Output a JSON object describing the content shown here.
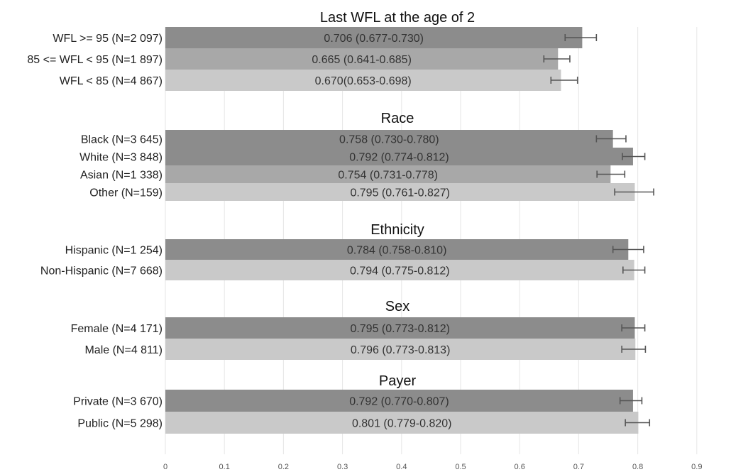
{
  "chart_data": {
    "type": "bar",
    "orientation": "horizontal",
    "xlim": [
      0,
      1.0
    ],
    "xticks": [
      "0",
      "0.1",
      "0.2",
      "0.3",
      "0.4",
      "0.5",
      "0.6",
      "0.7",
      "0.8",
      "0.9"
    ],
    "grid": true,
    "legend": "none",
    "colors": {
      "dark": "#8c8c8c",
      "medium": "#a8a8a8",
      "light": "#c9c9c9"
    },
    "groups": [
      {
        "title": "Last WFL at the age of 2",
        "bars": [
          {
            "category": "WFL >= 95 (N=2 097)",
            "value": 0.706,
            "ci": [
              0.677,
              0.73
            ],
            "label": "0.706 (0.677-0.730)",
            "shade": "dark"
          },
          {
            "category": "85 <= WFL < 95 (N=1 897)",
            "value": 0.665,
            "ci": [
              0.641,
              0.685
            ],
            "label": "0.665 (0.641-0.685)",
            "shade": "medium"
          },
          {
            "category": "WFL < 85 (N=4 867)",
            "value": 0.67,
            "ci": [
              0.653,
              0.698
            ],
            "label": "0.670(0.653-0.698)",
            "shade": "light"
          }
        ]
      },
      {
        "title": "Race",
        "bars": [
          {
            "category": "Black (N=3 645)",
            "value": 0.758,
            "ci": [
              0.73,
              0.78
            ],
            "label": "0.758 (0.730-0.780)",
            "shade": "dark"
          },
          {
            "category": "White (N=3 848)",
            "value": 0.792,
            "ci": [
              0.774,
              0.812
            ],
            "label": "0.792 (0.774-0.812)",
            "shade": "dark"
          },
          {
            "category": "Asian (N=1 338)",
            "value": 0.754,
            "ci": [
              0.731,
              0.778
            ],
            "label": "0.754 (0.731-0.778)",
            "shade": "medium"
          },
          {
            "category": "Other (N=159)",
            "value": 0.795,
            "ci": [
              0.761,
              0.827
            ],
            "label": "0.795 (0.761-0.827)",
            "shade": "light"
          }
        ]
      },
      {
        "title": "Ethnicity",
        "bars": [
          {
            "category": "Hispanic (N=1 254)",
            "value": 0.784,
            "ci": [
              0.758,
              0.81
            ],
            "label": "0.784 (0.758-0.810)",
            "shade": "dark"
          },
          {
            "category": "Non-Hispanic (N=7 668)",
            "value": 0.794,
            "ci": [
              0.775,
              0.812
            ],
            "label": "0.794 (0.775-0.812)",
            "shade": "light"
          }
        ]
      },
      {
        "title": "Sex",
        "bars": [
          {
            "category": "Female (N=4 171)",
            "value": 0.795,
            "ci": [
              0.773,
              0.812
            ],
            "label": "0.795 (0.773-0.812)",
            "shade": "dark"
          },
          {
            "category": "Male (N=4 811)",
            "value": 0.796,
            "ci": [
              0.773,
              0.813
            ],
            "label": "0.796 (0.773-0.813)",
            "shade": "light"
          }
        ]
      },
      {
        "title": "Payer",
        "bars": [
          {
            "category": "Private (N=3 670)",
            "value": 0.792,
            "ci": [
              0.77,
              0.807
            ],
            "label": "0.792 (0.770-0.807)",
            "shade": "dark"
          },
          {
            "category": "Public (N=5 298)",
            "value": 0.801,
            "ci": [
              0.779,
              0.82
            ],
            "label": "0.801 (0.779-0.820)",
            "shade": "light"
          }
        ]
      }
    ]
  }
}
